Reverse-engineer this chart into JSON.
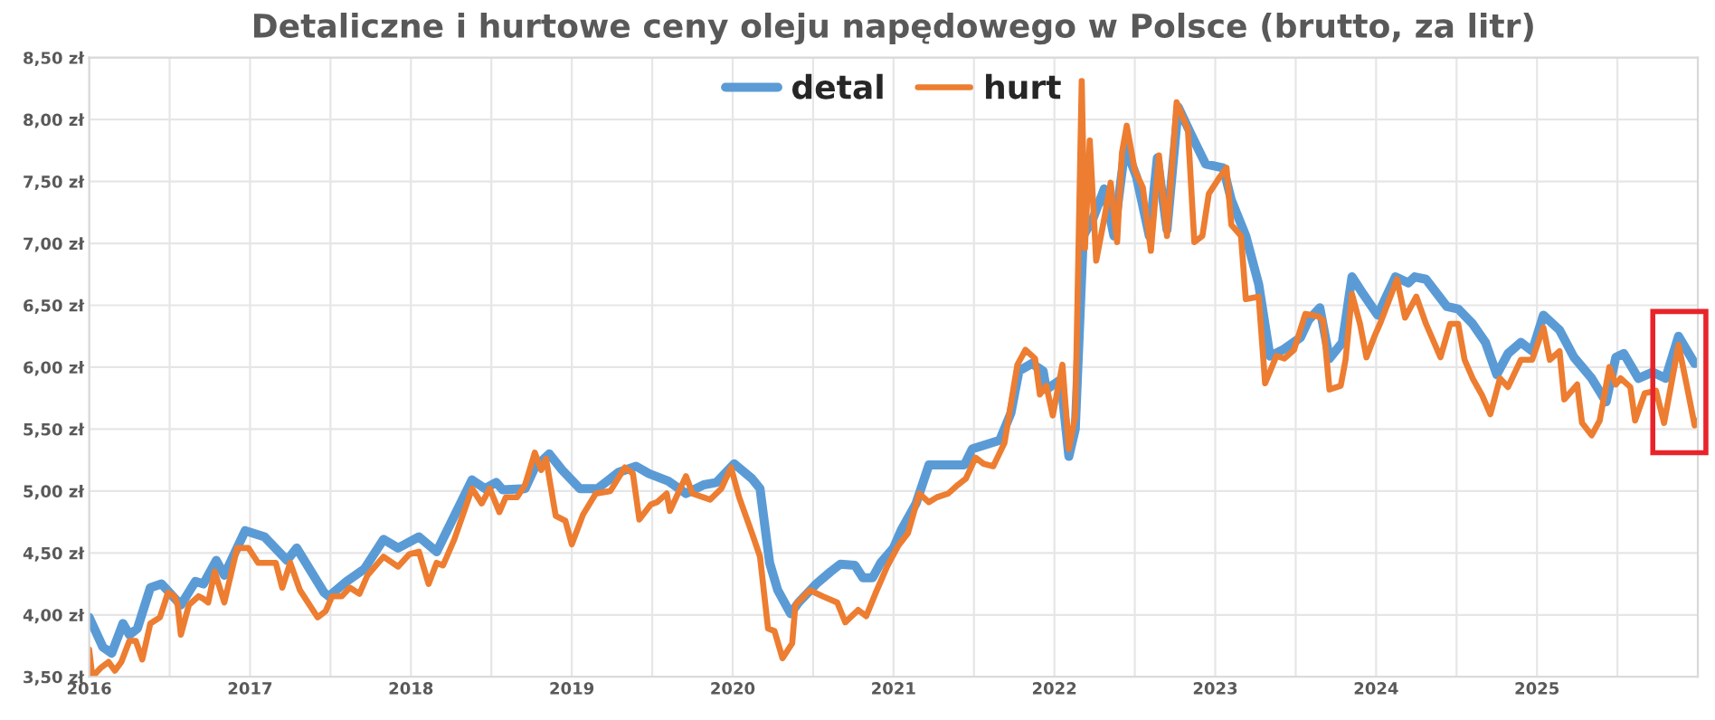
{
  "chart_data": {
    "type": "line",
    "title": "Detaliczne i hurtowe ceny oleju napędowego w Polsce (brutto, za litr)",
    "xlim": [
      2016,
      2026
    ],
    "xticks": [
      2016,
      {
        "value": 2016.5,
        "label": null
      },
      2017,
      {
        "value": 2017.5,
        "label": null
      },
      2018,
      {
        "value": 2018.5,
        "label": null
      },
      2019,
      {
        "value": 2019.5,
        "label": null
      },
      2020,
      {
        "value": 2020.5,
        "label": null
      },
      2021,
      {
        "value": 2021.5,
        "label": null
      },
      2022,
      {
        "value": 2022.5,
        "label": null
      },
      2023,
      {
        "value": 2023.5,
        "label": null
      },
      2024,
      {
        "value": 2024.5,
        "label": null
      },
      2025,
      {
        "value": 2025.5,
        "label": null
      }
    ],
    "ylim": [
      3.5,
      8.5
    ],
    "yticks": [
      {
        "value": 3.5,
        "label": "3,50 zł"
      },
      {
        "value": 4.0,
        "label": "4,00 zł"
      },
      {
        "value": 4.5,
        "label": "4,50 zł"
      },
      {
        "value": 5.0,
        "label": "5,00 zł"
      },
      {
        "value": 5.5,
        "label": "5,50 zł"
      },
      {
        "value": 6.0,
        "label": "6,00 zł"
      },
      {
        "value": 6.5,
        "label": "6,50 zł"
      },
      {
        "value": 7.0,
        "label": "7,00 zł"
      },
      {
        "value": 7.5,
        "label": "7,50 zł"
      },
      {
        "value": 8.0,
        "label": "8,00 zł"
      },
      {
        "value": 8.5,
        "label": "8,50 zł"
      }
    ],
    "grid": true,
    "legend": "top",
    "marker": "none",
    "line_style": "solid",
    "series": [
      {
        "name": "detal",
        "color": "#5b9bd5",
        "x": [
          2016.0,
          2016.085,
          2016.14,
          2016.21,
          2016.25,
          2016.3,
          2016.38,
          2016.45,
          2016.57,
          2016.66,
          2016.71,
          2016.79,
          2016.84,
          2016.97,
          2017.09,
          2017.23,
          2017.29,
          2017.46,
          2017.49,
          2017.6,
          2017.71,
          2017.83,
          2017.92,
          2018.05,
          2018.16,
          2018.27,
          2018.38,
          2018.46,
          2018.53,
          2018.57,
          2018.71,
          2018.77,
          2018.86,
          2018.94,
          2019.05,
          2019.16,
          2019.22,
          2019.29,
          2019.4,
          2019.48,
          2019.6,
          2019.71,
          2019.82,
          2019.9,
          2020.01,
          2020.12,
          2020.17,
          2020.23,
          2020.28,
          2020.36,
          2020.41,
          2020.52,
          2020.61,
          2020.67,
          2020.76,
          2020.81,
          2020.87,
          2020.92,
          2021.0,
          2021.05,
          2021.14,
          2021.22,
          2021.44,
          2021.49,
          2021.66,
          2021.73,
          2021.78,
          2021.86,
          2021.93,
          2021.95,
          2022.04,
          2022.09,
          2022.13,
          2022.18,
          2022.24,
          2022.31,
          2022.37,
          2022.44,
          2022.51,
          2022.59,
          2022.64,
          2022.7,
          2022.77,
          2022.85,
          2022.94,
          2023.05,
          2023.1,
          2023.19,
          2023.27,
          2023.34,
          2023.42,
          2023.53,
          2023.58,
          2023.65,
          2023.71,
          2023.79,
          2023.85,
          2023.92,
          2024.01,
          2024.12,
          2024.2,
          2024.24,
          2024.31,
          2024.44,
          2024.51,
          2024.6,
          2024.68,
          2024.75,
          2024.82,
          2024.9,
          2024.97,
          2025.04,
          2025.14,
          2025.23,
          2025.34,
          2025.43,
          2025.49,
          2025.54,
          2025.63,
          2025.72,
          2025.8,
          2025.88,
          2025.98
        ],
        "values": [
          3.98,
          3.74,
          3.69,
          3.93,
          3.84,
          3.89,
          4.22,
          4.25,
          4.08,
          4.27,
          4.25,
          4.44,
          4.32,
          4.68,
          4.63,
          4.44,
          4.54,
          4.18,
          4.15,
          4.27,
          4.37,
          4.61,
          4.54,
          4.63,
          4.51,
          4.8,
          5.09,
          5.02,
          5.07,
          5.01,
          5.02,
          5.19,
          5.3,
          5.17,
          5.02,
          5.02,
          5.08,
          5.15,
          5.2,
          5.14,
          5.08,
          4.98,
          5.05,
          5.07,
          5.22,
          5.1,
          5.02,
          4.42,
          4.2,
          4.01,
          4.1,
          4.25,
          4.35,
          4.41,
          4.4,
          4.3,
          4.3,
          4.42,
          4.54,
          4.69,
          4.9,
          5.21,
          5.21,
          5.34,
          5.41,
          5.63,
          5.97,
          6.03,
          5.97,
          5.82,
          5.9,
          5.28,
          5.5,
          7.06,
          7.2,
          7.44,
          7.06,
          7.78,
          7.54,
          7.06,
          7.69,
          7.11,
          8.1,
          7.88,
          7.64,
          7.61,
          7.35,
          7.06,
          6.67,
          6.09,
          6.14,
          6.24,
          6.38,
          6.48,
          6.07,
          6.2,
          6.73,
          6.59,
          6.42,
          6.73,
          6.68,
          6.73,
          6.71,
          6.49,
          6.47,
          6.35,
          6.2,
          5.94,
          6.11,
          6.2,
          6.13,
          6.42,
          6.3,
          6.08,
          5.91,
          5.72,
          6.08,
          6.11,
          5.91,
          5.96,
          5.91,
          6.25,
          6.03
        ]
      },
      {
        "name": "hurt",
        "color": "#ed7d31",
        "x": [
          2016.0,
          2016.02,
          2016.07,
          2016.12,
          2016.16,
          2016.2,
          2016.25,
          2016.29,
          2016.33,
          2016.38,
          2016.44,
          2016.49,
          2016.53,
          2016.55,
          2016.57,
          2016.62,
          2016.68,
          2016.71,
          2016.74,
          2016.78,
          2016.84,
          2016.92,
          2016.99,
          2017.05,
          2017.16,
          2017.2,
          2017.25,
          2017.31,
          2017.36,
          2017.42,
          2017.47,
          2017.51,
          2017.57,
          2017.62,
          2017.68,
          2017.73,
          2017.83,
          2017.92,
          2017.99,
          2018.05,
          2018.11,
          2018.16,
          2018.2,
          2018.27,
          2018.38,
          2018.44,
          2018.49,
          2018.55,
          2018.59,
          2018.66,
          2018.71,
          2018.77,
          2018.81,
          2018.84,
          2018.9,
          2018.96,
          2019.0,
          2019.07,
          2019.15,
          2019.24,
          2019.33,
          2019.38,
          2019.42,
          2019.49,
          2019.53,
          2019.59,
          2019.61,
          2019.66,
          2019.71,
          2019.75,
          2019.86,
          2019.93,
          2019.99,
          2020.04,
          2020.12,
          2020.17,
          2020.22,
          2020.26,
          2020.31,
          2020.37,
          2020.39,
          2020.48,
          2020.56,
          2020.65,
          2020.7,
          2020.78,
          2020.83,
          2020.89,
          2020.96,
          2021.03,
          2021.09,
          2021.16,
          2021.22,
          2021.27,
          2021.34,
          2021.4,
          2021.45,
          2021.51,
          2021.56,
          2021.62,
          2021.69,
          2021.77,
          2021.82,
          2021.88,
          2021.91,
          2021.95,
          2021.99,
          2022.05,
          2022.09,
          2022.13,
          2022.17,
          2022.19,
          2022.22,
          2022.26,
          2022.31,
          2022.35,
          2022.39,
          2022.42,
          2022.45,
          2022.5,
          2022.55,
          2022.6,
          2022.65,
          2022.7,
          2022.76,
          2022.83,
          2022.87,
          2022.92,
          2022.96,
          2023.03,
          2023.07,
          2023.1,
          2023.16,
          2023.19,
          2023.27,
          2023.31,
          2023.38,
          2023.43,
          2023.49,
          2023.56,
          2023.64,
          2023.67,
          2023.71,
          2023.78,
          2023.81,
          2023.85,
          2023.9,
          2023.94,
          2023.99,
          2024.03,
          2024.13,
          2024.18,
          2024.25,
          2024.31,
          2024.4,
          2024.46,
          2024.51,
          2024.55,
          2024.6,
          2024.66,
          2024.71,
          2024.77,
          2024.82,
          2024.9,
          2024.97,
          2025.04,
          2025.08,
          2025.14,
          2025.17,
          2025.25,
          2025.28,
          2025.34,
          2025.39,
          2025.45,
          2025.49,
          2025.52,
          2025.58,
          2025.61,
          2025.67,
          2025.74,
          2025.79,
          2025.88,
          2025.93,
          2025.98,
          2026.0
        ],
        "values": [
          3.72,
          3.5,
          3.57,
          3.62,
          3.55,
          3.62,
          3.79,
          3.79,
          3.64,
          3.93,
          3.98,
          4.18,
          4.15,
          4.08,
          3.84,
          4.08,
          4.15,
          4.13,
          4.1,
          4.35,
          4.1,
          4.54,
          4.54,
          4.42,
          4.42,
          4.22,
          4.42,
          4.2,
          4.1,
          3.98,
          4.03,
          4.15,
          4.15,
          4.22,
          4.17,
          4.32,
          4.47,
          4.39,
          4.49,
          4.51,
          4.25,
          4.42,
          4.4,
          4.61,
          5.02,
          4.9,
          5.02,
          4.83,
          4.95,
          4.95,
          5.05,
          5.31,
          5.17,
          5.26,
          4.8,
          4.76,
          4.57,
          4.81,
          4.98,
          5.0,
          5.19,
          5.14,
          4.77,
          4.89,
          4.91,
          4.98,
          4.84,
          4.98,
          5.12,
          4.98,
          4.93,
          5.02,
          5.19,
          4.95,
          4.66,
          4.47,
          3.89,
          3.87,
          3.65,
          3.77,
          4.08,
          4.2,
          4.15,
          4.1,
          3.94,
          4.04,
          3.99,
          4.18,
          4.39,
          4.56,
          4.66,
          4.98,
          4.91,
          4.95,
          4.98,
          5.05,
          5.1,
          5.27,
          5.22,
          5.2,
          5.39,
          6.02,
          6.14,
          6.07,
          5.78,
          5.85,
          5.61,
          6.02,
          5.34,
          5.61,
          8.31,
          6.96,
          7.83,
          6.86,
          7.2,
          7.49,
          7.01,
          7.73,
          7.95,
          7.59,
          7.45,
          6.94,
          7.71,
          7.06,
          8.14,
          7.92,
          7.01,
          7.06,
          7.4,
          7.54,
          7.61,
          7.15,
          7.06,
          6.55,
          6.57,
          5.87,
          6.09,
          6.07,
          6.14,
          6.43,
          6.41,
          6.38,
          5.82,
          5.85,
          6.06,
          6.59,
          6.35,
          6.08,
          6.25,
          6.37,
          6.71,
          6.4,
          6.57,
          6.35,
          6.08,
          6.35,
          6.35,
          6.06,
          5.91,
          5.77,
          5.62,
          5.91,
          5.84,
          6.06,
          6.06,
          6.32,
          6.06,
          6.13,
          5.74,
          5.86,
          5.55,
          5.45,
          5.57,
          6.0,
          5.86,
          5.91,
          5.84,
          5.57,
          5.79,
          5.81,
          5.55,
          6.18,
          5.86,
          5.53,
          5.57
        ]
      }
    ]
  }
}
